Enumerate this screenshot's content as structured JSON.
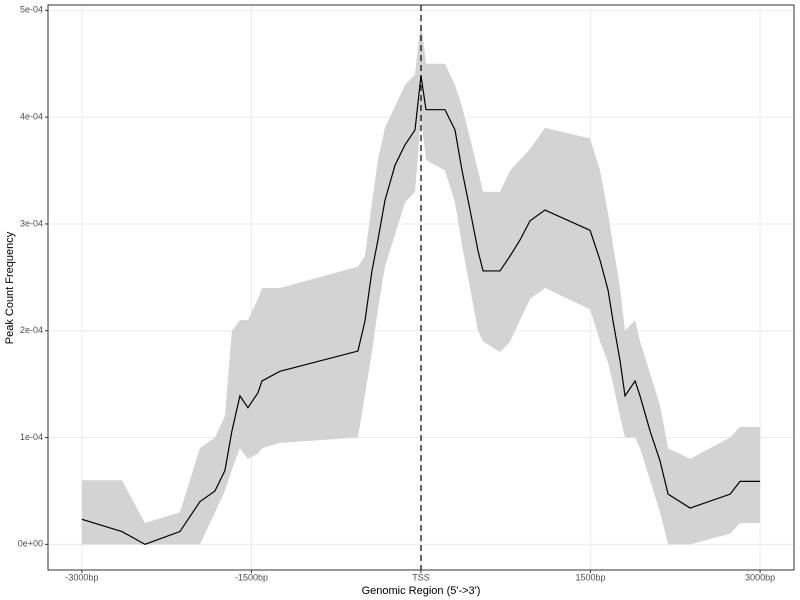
{
  "chart_data": {
    "type": "line",
    "x_label": "Genomic Region (5'->3')",
    "y_label": "Peak Count Frequency",
    "x": [
      -3000,
      -2646,
      -2442,
      -2133,
      -1956,
      -1823,
      -1735,
      -1673,
      -1602,
      -1531,
      -1442,
      -1407,
      -1248,
      -558,
      -496,
      -434,
      -381,
      -319,
      -230,
      -142,
      -53,
      0,
      44,
      212,
      301,
      363,
      434,
      504,
      549,
      699,
      788,
      876,
      965,
      1097,
      1496,
      1584,
      1655,
      1699,
      1761,
      1805,
      1894,
      1938,
      2027,
      2115,
      2186,
      2381,
      2735,
      2823,
      3000
    ],
    "series": [
      {
        "color": "#000000",
        "band_color": "#d3d3d3",
        "values": [
          2.35e-05,
          1.2e-05,
          0,
          1.2e-05,
          4e-05,
          5e-05,
          6.9e-05,
          0.000106,
          0.000139,
          0.000128,
          0.000142,
          0.000153,
          0.000162,
          0.000181,
          0.000209,
          0.000256,
          0.000285,
          0.000322,
          0.000355,
          0.000374,
          0.000388,
          0.000439,
          0.000407,
          0.000407,
          0.000388,
          0.00035,
          0.000313,
          0.000275,
          0.000256,
          0.000256,
          0.00027,
          0.000285,
          0.000303,
          0.000313,
          0.000294,
          0.000266,
          0.000238,
          0.000209,
          0.000172,
          0.000139,
          0.000153,
          0.000139,
          0.000106,
          7.8e-05,
          4.7e-05,
          3.4e-05,
          4.7e-05,
          5.9e-05,
          5.9e-05
        ],
        "lower": [
          0,
          0,
          0,
          0,
          0,
          3e-05,
          5e-05,
          7e-05,
          9e-05,
          8e-05,
          8.5e-05,
          9e-05,
          9.5e-05,
          0.0001,
          0.00014,
          0.00018,
          0.00022,
          0.00026,
          0.00029,
          0.00032,
          0.00033,
          0.0004,
          0.00036,
          0.00035,
          0.00032,
          0.00028,
          0.00024,
          0.0002,
          0.00019,
          0.00018,
          0.00019,
          0.00021,
          0.00023,
          0.00024,
          0.00022,
          0.00019,
          0.00017,
          0.00015,
          0.00012,
          0.0001,
          0.0001,
          9e-05,
          6e-05,
          3e-05,
          0,
          0,
          1e-05,
          2e-05,
          2e-05
        ],
        "upper": [
          6e-05,
          6e-05,
          2e-05,
          3e-05,
          9e-05,
          0.0001,
          0.00012,
          0.0002,
          0.00021,
          0.00021,
          0.00023,
          0.00024,
          0.00024,
          0.00026,
          0.00027,
          0.00032,
          0.00036,
          0.00039,
          0.00041,
          0.00043,
          0.00044,
          0.00049,
          0.00045,
          0.00045,
          0.00043,
          0.00041,
          0.00038,
          0.00035,
          0.00033,
          0.00033,
          0.00035,
          0.00036,
          0.00037,
          0.00039,
          0.00038,
          0.00035,
          0.00031,
          0.00028,
          0.00024,
          0.0002,
          0.00021,
          0.00019,
          0.00016,
          0.00013,
          9e-05,
          8e-05,
          0.0001,
          0.00011,
          0.00011
        ]
      }
    ],
    "xlim": [
      -3300,
      3300
    ],
    "ylim": [
      -2.4e-05,
      0.000505
    ],
    "xticks": [
      {
        "value": -3000,
        "label": "-3000bp"
      },
      {
        "value": -1500,
        "label": "-1500bp"
      },
      {
        "value": 0,
        "label": "TSS"
      },
      {
        "value": 1500,
        "label": "1500bp"
      },
      {
        "value": 3000,
        "label": "3000bp"
      }
    ],
    "yticks": [
      {
        "value": 0,
        "label": "0e+00"
      },
      {
        "value": 0.0001,
        "label": "1e-04"
      },
      {
        "value": 0.0002,
        "label": "2e-04"
      },
      {
        "value": 0.0003,
        "label": "3e-04"
      },
      {
        "value": 0.0004,
        "label": "4e-04"
      },
      {
        "value": 0.0005,
        "label": "5e-04"
      }
    ],
    "vline_tick": 2,
    "grid": true
  }
}
